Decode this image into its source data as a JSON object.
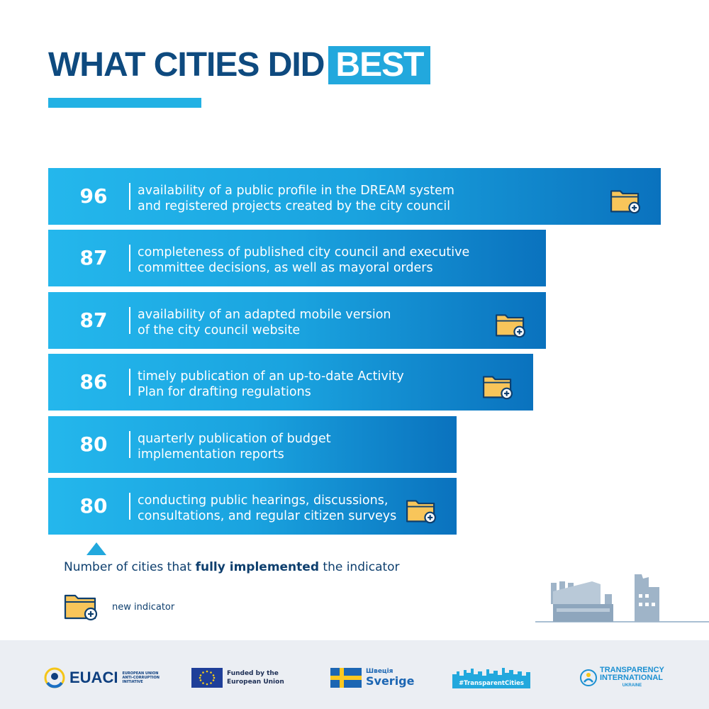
{
  "header": {
    "title_main": "WHAT CITIES DID",
    "title_highlight": "BEST"
  },
  "chart_data": {
    "type": "bar",
    "orientation": "horizontal",
    "categories": [
      "availability of a public profile in the DREAM system\nand registered projects created by the city council",
      "completeness of published city council and executive\ncommittee decisions, as well as mayoral orders",
      "availability of an adapted mobile version\nof the city council website",
      "timely publication of an up-to-date Activity\nPlan for drafting regulations",
      "quarterly publication of budget\nimplementation reports",
      "conducting public hearings, discussions,\nconsultations, and regular citizen surveys"
    ],
    "values": [
      96,
      87,
      87,
      86,
      80,
      80
    ],
    "new_indicator": [
      true,
      false,
      true,
      true,
      false,
      true
    ],
    "value_labels": [
      "96",
      "87",
      "87",
      "86",
      "80",
      "80"
    ],
    "colors": {
      "bar_light": "#24b7ec",
      "bar_dark": "#0a72be",
      "icon_fill": "#f8c55a",
      "icon_stroke": "#0e3f6e"
    }
  },
  "axis_note": {
    "prefix": "Number of cities that ",
    "bold": "fully implemented",
    "suffix": " the indicator"
  },
  "legend": {
    "icon": "folder-plus-icon",
    "label": "new indicator"
  },
  "footer": {
    "euaci": {
      "name": "EUACI",
      "subtitle": "EUROPEAN UNION ANTI-CORRUPTION INITIATIVE"
    },
    "eu": {
      "text": "Funded by the European Union"
    },
    "sweden": {
      "small": "Швеція",
      "big": "Sverige"
    },
    "transparent_cities": {
      "tag": "#TransparentCities"
    },
    "ti": {
      "line1": "TRANSPARENCY",
      "line2": "INTERNATIONAL",
      "line3": "UKRAINE"
    }
  }
}
